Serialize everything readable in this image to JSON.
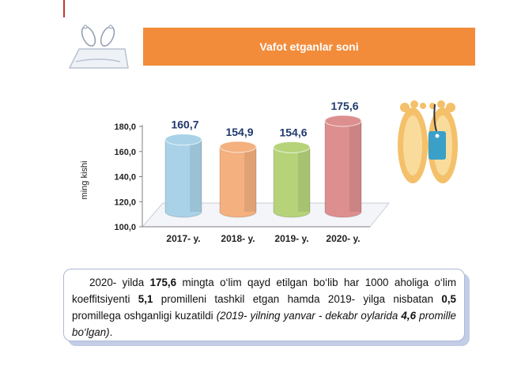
{
  "header": {
    "title": "Vafot etganlar soni"
  },
  "chart_data": {
    "type": "bar",
    "categories": [
      "2017- y.",
      "2018- y.",
      "2019- y.",
      "2020- y."
    ],
    "values": [
      160.7,
      154.9,
      154.6,
      175.6
    ],
    "value_labels": [
      "160,7",
      "154,9",
      "154,6",
      "175,6"
    ],
    "ylabel": "ming kishi",
    "ylim": [
      100,
      180
    ],
    "yticks": [
      "100,0",
      "120,0",
      "140,0",
      "160,0",
      "180,0"
    ],
    "colors": [
      "#a9d2e8",
      "#f4b07f",
      "#b6d37a",
      "#dd8f8f"
    ]
  },
  "note": {
    "t1": "2020- yilda ",
    "b1": "175,6",
    "t2": " mingta o‘lim qayd etilgan bo‘lib har 1000 aholiga o‘lim koeffitsiyenti ",
    "b2": "5,1",
    "t3": " promilleni tashkil etgan hamda 2019- yilga nisbatan ",
    "b3": "0,5",
    "t4": " promillega oshganligi kuzatildi ",
    "i1": "(2019- yilning yanvar - dekabr oylarida ",
    "bi1": "4,6",
    "i2": " promille bo‘lgan)",
    "t5": "."
  }
}
